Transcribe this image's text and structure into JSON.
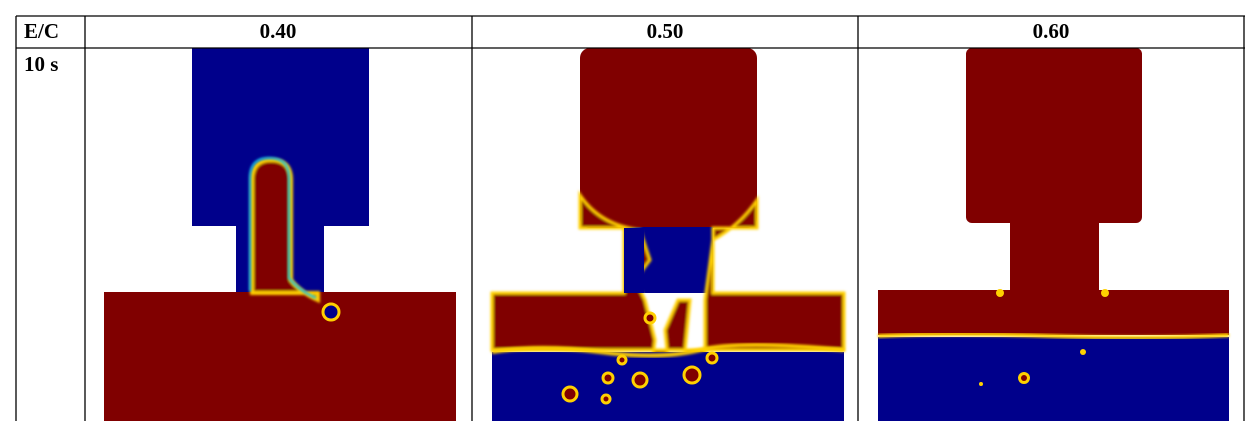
{
  "table": {
    "header": [
      "E/C",
      "0.40",
      "0.50",
      "0.60"
    ],
    "rows": [
      {
        "label": "10 s"
      }
    ]
  }
}
